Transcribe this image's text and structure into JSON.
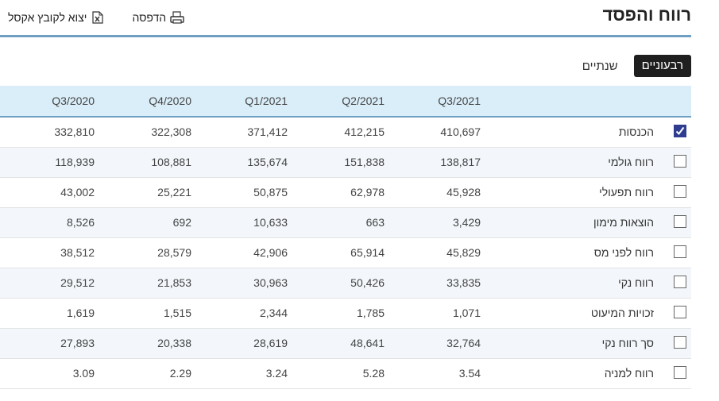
{
  "page": {
    "title": "רווח והפסד"
  },
  "toolbar": {
    "print_label": "הדפסה",
    "export_label": "יצוא לקובץ אקסל"
  },
  "icons": {
    "print": "printer-icon",
    "export": "excel-icon"
  },
  "toggle": {
    "active_label": "רבעוניים",
    "inactive_label": "שנתיים"
  },
  "colors": {
    "header_bg": "#daeef9",
    "accent": "#6f9fc2",
    "checked": "#2e3d8f",
    "row_alt": "#f3f7fb"
  },
  "table": {
    "columns": [
      "Q3/2021",
      "Q2/2021",
      "Q1/2021",
      "Q4/2020",
      "Q3/2020"
    ],
    "rows": [
      {
        "label": "הכנסות",
        "checked": true,
        "values": [
          "410,697",
          "412,215",
          "371,412",
          "322,308",
          "332,810"
        ]
      },
      {
        "label": "רווח גולמי",
        "checked": false,
        "values": [
          "138,817",
          "151,838",
          "135,674",
          "108,881",
          "118,939"
        ]
      },
      {
        "label": "רווח תפעולי",
        "checked": false,
        "values": [
          "45,928",
          "62,978",
          "50,875",
          "25,221",
          "43,002"
        ]
      },
      {
        "label": "הוצאות מימון",
        "checked": false,
        "values": [
          "3,429",
          "663",
          "10,633",
          "692",
          "8,526"
        ]
      },
      {
        "label": "רווח לפני מס",
        "checked": false,
        "values": [
          "45,829",
          "65,914",
          "42,906",
          "28,579",
          "38,512"
        ]
      },
      {
        "label": "רווח נקי",
        "checked": false,
        "values": [
          "33,835",
          "50,426",
          "30,963",
          "21,853",
          "29,512"
        ]
      },
      {
        "label": "זכויות המיעוט",
        "checked": false,
        "values": [
          "1,071",
          "1,785",
          "2,344",
          "1,515",
          "1,619"
        ]
      },
      {
        "label": "סך רווח נקי",
        "checked": false,
        "values": [
          "32,764",
          "48,641",
          "28,619",
          "20,338",
          "27,893"
        ]
      },
      {
        "label": "רווח למניה",
        "checked": false,
        "values": [
          "3.54",
          "5.28",
          "3.24",
          "2.29",
          "3.09"
        ]
      }
    ]
  }
}
